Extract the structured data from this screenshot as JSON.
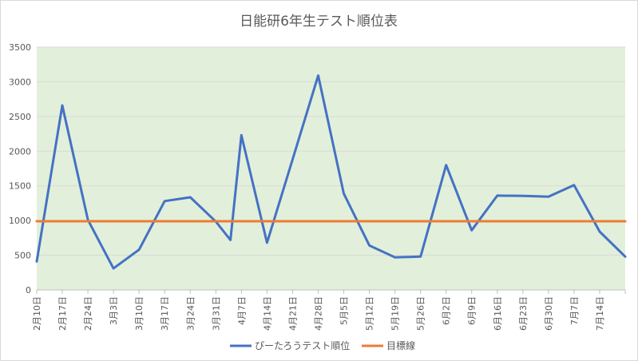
{
  "chart_data": {
    "type": "line",
    "title": "日能研6年生テスト順位表",
    "xlabel": "",
    "ylabel": "",
    "ylim": [
      0,
      3500
    ],
    "yticks": [
      0,
      500,
      1000,
      1500,
      2000,
      2500,
      3000,
      3500
    ],
    "grid": true,
    "legend_position": "bottom",
    "plot_background": "#e2efda",
    "categories": [
      "2月10日",
      "2月17日",
      "2月24日",
      "3月3日",
      "3月10日",
      "3月17日",
      "3月24日",
      "3月31日",
      "4月7日",
      "4月14日",
      "4月21日",
      "4月28日",
      "5月5日",
      "5月12日",
      "5月19日",
      "5月26日",
      "6月2日",
      "6月9日",
      "6月16日",
      "6月23日",
      "6月30日",
      "7月7日",
      "7月14日"
    ],
    "series": [
      {
        "name": "ぴーたろうテスト順位",
        "color": "#4472c4",
        "points": [
          {
            "x": 0.0,
            "y": 410
          },
          {
            "x": 1.0,
            "y": 2660
          },
          {
            "x": 2.0,
            "y": 1010
          },
          {
            "x": 3.0,
            "y": 310
          },
          {
            "x": 4.0,
            "y": 580
          },
          {
            "x": 5.0,
            "y": 1280
          },
          {
            "x": 6.0,
            "y": 1335
          },
          {
            "x": 7.0,
            "y": 985
          },
          {
            "x": 7.57,
            "y": 720
          },
          {
            "x": 8.0,
            "y": 2230
          },
          {
            "x": 9.0,
            "y": 680
          },
          {
            "x": 10.0,
            "y": 1880
          },
          {
            "x": 11.0,
            "y": 3090
          },
          {
            "x": 12.0,
            "y": 1390
          },
          {
            "x": 13.0,
            "y": 640
          },
          {
            "x": 14.0,
            "y": 470
          },
          {
            "x": 15.0,
            "y": 480
          },
          {
            "x": 16.0,
            "y": 1800
          },
          {
            "x": 17.0,
            "y": 860
          },
          {
            "x": 18.0,
            "y": 1360
          },
          {
            "x": 19.0,
            "y": 1355
          },
          {
            "x": 20.0,
            "y": 1345
          },
          {
            "x": 21.0,
            "y": 1510
          },
          {
            "x": 22.0,
            "y": 840
          },
          {
            "x": 23.0,
            "y": 480
          }
        ]
      },
      {
        "name": "目標線",
        "color": "#ed7d31",
        "points": [
          {
            "x": 0.0,
            "y": 990
          },
          {
            "x": 23.0,
            "y": 990
          }
        ]
      }
    ]
  }
}
